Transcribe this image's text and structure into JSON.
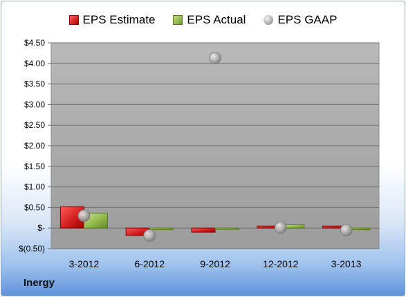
{
  "company": "Inergy",
  "legend": {
    "estimate": "EPS Estimate",
    "actual": "EPS Actual",
    "gaap": "EPS GAAP"
  },
  "colors": {
    "estimate": "#cc1f1f",
    "actual": "#8db346",
    "gaap": "#b8b8b8",
    "plot_top": "#b4b4b4",
    "plot_bottom": "#9a9a9a"
  },
  "chart_data": {
    "type": "bar",
    "title": "",
    "xlabel": "",
    "ylabel": "",
    "categories": [
      "3-2012",
      "6-2012",
      "9-2012",
      "12-2012",
      "3-2013"
    ],
    "series": [
      {
        "name": "EPS Estimate",
        "kind": "bar",
        "values": [
          0.52,
          -0.18,
          -0.1,
          0.05,
          0.05
        ]
      },
      {
        "name": "EPS Actual",
        "kind": "bar",
        "values": [
          0.36,
          -0.04,
          -0.03,
          0.08,
          -0.04
        ]
      },
      {
        "name": "EPS GAAP",
        "kind": "scatter",
        "values": [
          0.3,
          -0.18,
          4.13,
          0.01,
          -0.05
        ]
      }
    ],
    "ylim": [
      -0.5,
      4.5
    ],
    "yticks": [
      -0.5,
      0,
      0.5,
      1.0,
      1.5,
      2.0,
      2.5,
      3.0,
      3.5,
      4.0,
      4.5
    ],
    "ytick_labels": [
      "$(0.50)",
      "$-",
      "$0.50",
      "$1.00",
      "$1.50",
      "$2.00",
      "$2.50",
      "$3.00",
      "$3.50",
      "$4.00",
      "$4.50"
    ],
    "grid": true,
    "legend_position": "top"
  }
}
